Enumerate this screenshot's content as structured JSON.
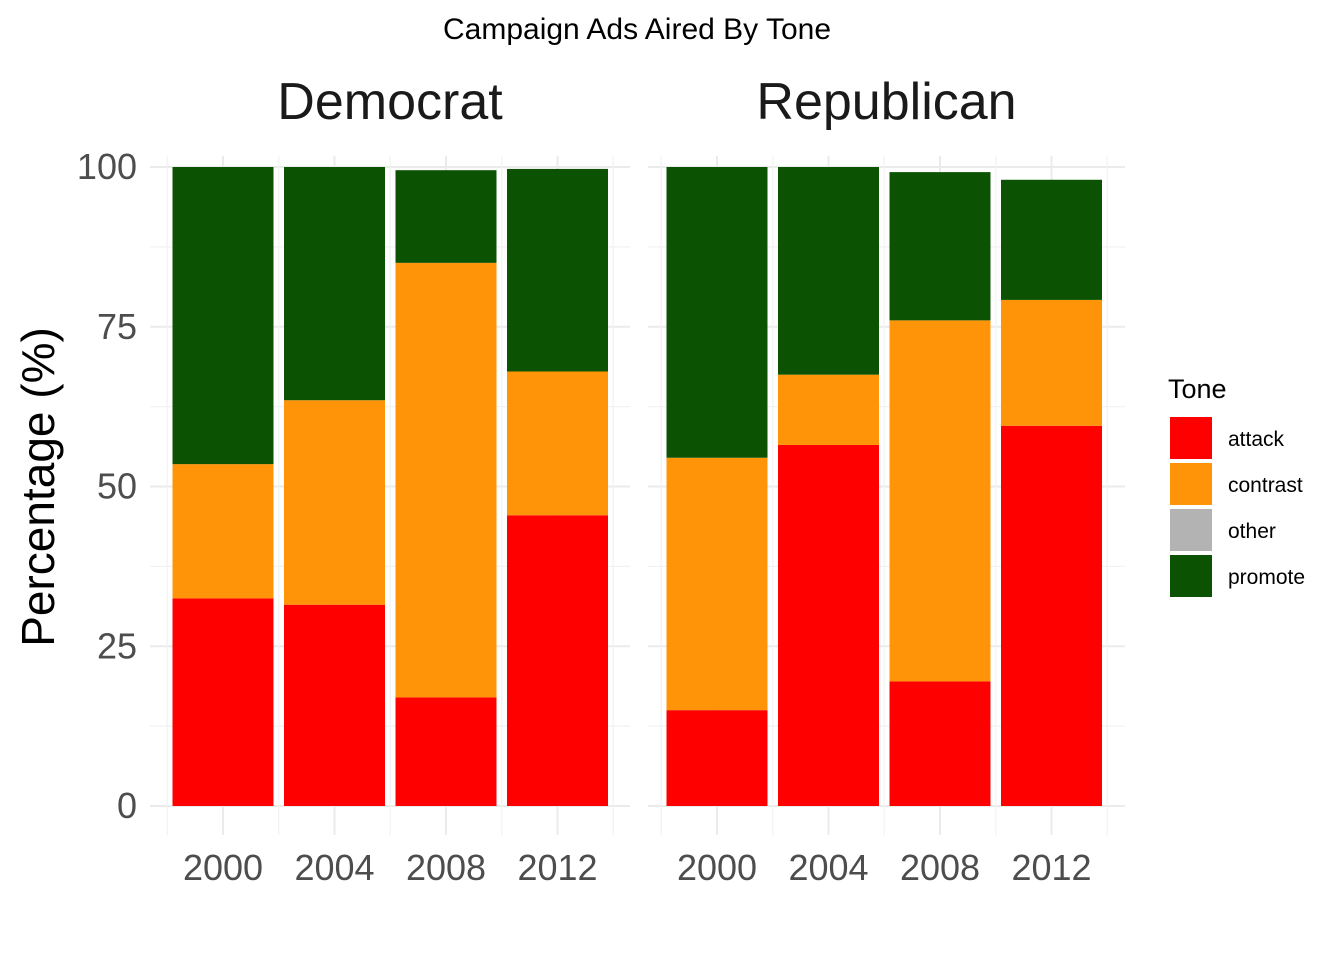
{
  "chart_data": {
    "type": "bar",
    "stacked": true,
    "title": "Campaign Ads Aired By Tone",
    "ylabel": "Percentage (%)",
    "xlabel": "",
    "ylim": [
      0,
      100
    ],
    "yticks": [
      "0",
      "25",
      "50",
      "75",
      "100"
    ],
    "grid": true,
    "legend": {
      "title": "Tone",
      "position": "right",
      "entries": [
        {
          "name": "attack",
          "color": "#ff0000"
        },
        {
          "name": "contrast",
          "color": "#ff9408"
        },
        {
          "name": "other",
          "color": "#b3b3b3"
        },
        {
          "name": "promote",
          "color": "#0b5302"
        }
      ]
    },
    "panels": [
      {
        "name": "Democrat",
        "categories": [
          "2000",
          "2004",
          "2008",
          "2012"
        ],
        "series": [
          {
            "name": "attack",
            "values": [
              32.5,
              31.5,
              17,
              45.5
            ]
          },
          {
            "name": "contrast",
            "values": [
              21,
              32,
              68,
              22.5
            ]
          },
          {
            "name": "other",
            "values": [
              0,
              0,
              0,
              0
            ]
          },
          {
            "name": "promote",
            "values": [
              46.5,
              36.5,
              14.5,
              31.7
            ]
          }
        ]
      },
      {
        "name": "Republican",
        "categories": [
          "2000",
          "2004",
          "2008",
          "2012"
        ],
        "series": [
          {
            "name": "attack",
            "values": [
              15,
              56.5,
              19.5,
              59.5
            ]
          },
          {
            "name": "contrast",
            "values": [
              39.5,
              11,
              56.5,
              19.7
            ]
          },
          {
            "name": "other",
            "values": [
              0,
              0,
              0,
              0
            ]
          },
          {
            "name": "promote",
            "values": [
              45.5,
              32.5,
              23.2,
              18.8
            ]
          }
        ]
      }
    ]
  }
}
